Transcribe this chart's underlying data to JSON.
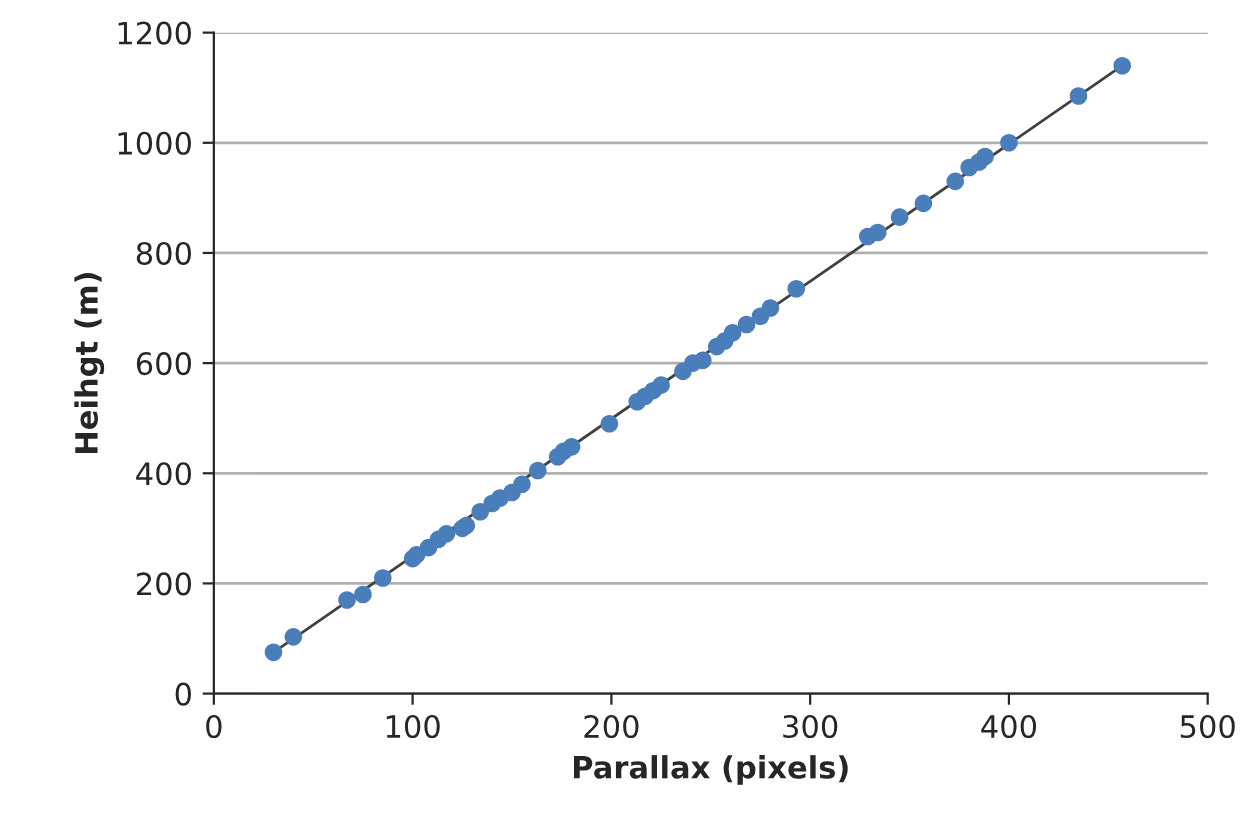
{
  "chart_data": {
    "type": "scatter",
    "xlabel": "Parallax (pixels)",
    "ylabel": "Heihgt (m)",
    "xlim": [
      0,
      500
    ],
    "ylim": [
      0,
      1200
    ],
    "xticks": [
      0,
      100,
      200,
      300,
      400,
      500
    ],
    "yticks": [
      0,
      200,
      400,
      600,
      800,
      1000,
      1200
    ],
    "grid": "y",
    "series": [
      {
        "color": "#4a7ebb",
        "marker": "circle",
        "x": [
          30,
          40,
          67,
          75,
          85,
          100,
          102,
          108,
          113,
          117,
          125,
          127,
          134,
          140,
          144,
          150,
          155,
          163,
          173,
          176,
          180,
          199,
          213,
          217,
          221,
          225,
          236,
          241,
          246,
          253,
          257,
          261,
          268,
          275,
          280,
          293,
          329,
          334,
          345,
          357,
          373,
          380,
          385,
          388,
          400,
          435,
          457
        ],
        "values": [
          75,
          103,
          170,
          180,
          210,
          245,
          252,
          265,
          280,
          290,
          300,
          305,
          330,
          345,
          355,
          365,
          380,
          405,
          430,
          440,
          448,
          490,
          530,
          540,
          550,
          560,
          585,
          600,
          605,
          630,
          640,
          655,
          670,
          685,
          700,
          735,
          830,
          837,
          865,
          890,
          930,
          955,
          965,
          975,
          1000,
          1085,
          1140
        ]
      },
      {
        "type": "line",
        "marker": "none",
        "color": "#404040",
        "x": [
          30,
          457
        ],
        "values": [
          75,
          1140
        ]
      }
    ]
  }
}
